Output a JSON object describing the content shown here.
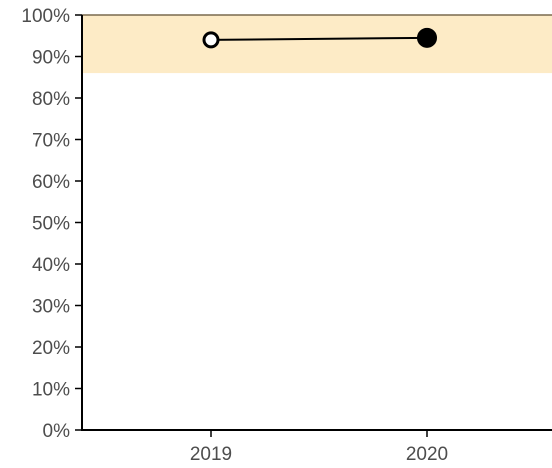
{
  "chart_data": {
    "type": "line",
    "x": [
      "2019",
      "2020"
    ],
    "series": [
      {
        "values": [
          0.94,
          0.945
        ],
        "marker_fills": [
          "open",
          "filled"
        ]
      }
    ],
    "ylim": [
      0,
      1
    ],
    "y_ticks": [
      0,
      0.1,
      0.2,
      0.3,
      0.4,
      0.5,
      0.6,
      0.7,
      0.8,
      0.9,
      1.0
    ],
    "y_tick_labels": [
      "0%",
      "10%",
      "20%",
      "30%",
      "40%",
      "50%",
      "60%",
      "70%",
      "80%",
      "90%",
      "100%"
    ],
    "x_tick_labels": [
      "2019",
      "2020"
    ],
    "target_band": {
      "from": 0.86,
      "to": 1.0
    },
    "grid": false,
    "legend": "none",
    "colors": {
      "band": "#fdebc6",
      "band_edge": "#7a6a4f",
      "line": "#000000",
      "marker_edge": "#000000",
      "marker_open_fill": "#ffffff",
      "marker_filled_fill": "#000000",
      "axis": "#000000",
      "tick_label": "#4d4d4d"
    }
  }
}
